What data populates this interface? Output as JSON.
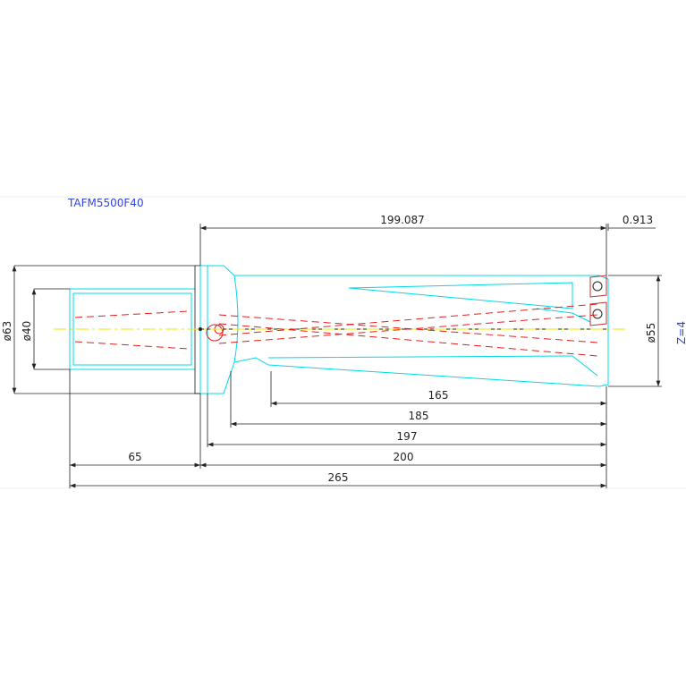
{
  "header": {
    "title": "TAFM5500F40"
  },
  "dimensions": {
    "tip_length": "199.087",
    "tip_offset": "0.913",
    "flange_diameter": "ø63",
    "shank_diameter": "ø40",
    "cutting_diameter": "ø55",
    "flutes": "Z=4",
    "flute_length": "165",
    "body_length_1": "185",
    "body_length_2": "197",
    "shank_length": "65",
    "working_length": "200",
    "total_length": "265"
  }
}
